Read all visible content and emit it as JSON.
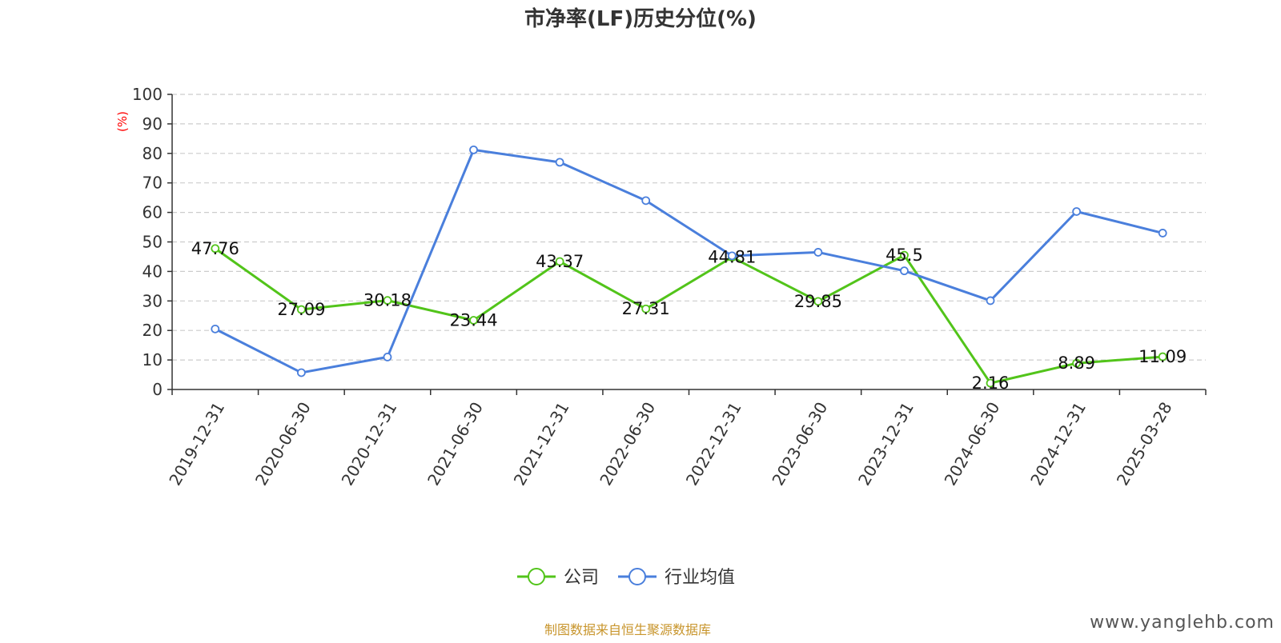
{
  "chart_data": {
    "type": "line",
    "title": "市净率(LF)历史分位(%)",
    "ylabel": "(%)",
    "ylim": [
      0,
      100
    ],
    "yticks": [
      0,
      10,
      20,
      30,
      40,
      50,
      60,
      70,
      80,
      90,
      100
    ],
    "grid": true,
    "legend_position": "bottom",
    "categories": [
      "2019-12-31",
      "2020-06-30",
      "2020-12-31",
      "2021-06-30",
      "2021-12-31",
      "2022-06-30",
      "2022-12-31",
      "2023-06-30",
      "2023-12-31",
      "2024-06-30",
      "2024-12-31",
      "2025-03-28"
    ],
    "series": [
      {
        "name": "公司",
        "color": "#52c41a",
        "values": [
          47.76,
          27.09,
          30.18,
          23.44,
          43.37,
          27.31,
          44.81,
          29.85,
          45.5,
          2.16,
          8.89,
          11.09
        ],
        "labels": [
          "47.76",
          "27.09",
          "30.18",
          "23.44",
          "43.37",
          "27.31",
          "44.81",
          "29.85",
          "45.5",
          "2.16",
          "8.89",
          "11.09"
        ]
      },
      {
        "name": "行业均值",
        "color": "#4a7fdc",
        "values": [
          20.5,
          5.7,
          11.0,
          81.2,
          77.0,
          64.0,
          45.3,
          46.5,
          40.2,
          30.1,
          60.3,
          53.0
        ]
      }
    ]
  },
  "colors": {
    "ylabel": "#ff0000",
    "source": "#c8952c",
    "grid": "#cccccc",
    "axis": "#333333"
  },
  "footer": {
    "source": "制图数据来自恒生聚源数据库",
    "watermark": "www.yanglehb.com"
  }
}
